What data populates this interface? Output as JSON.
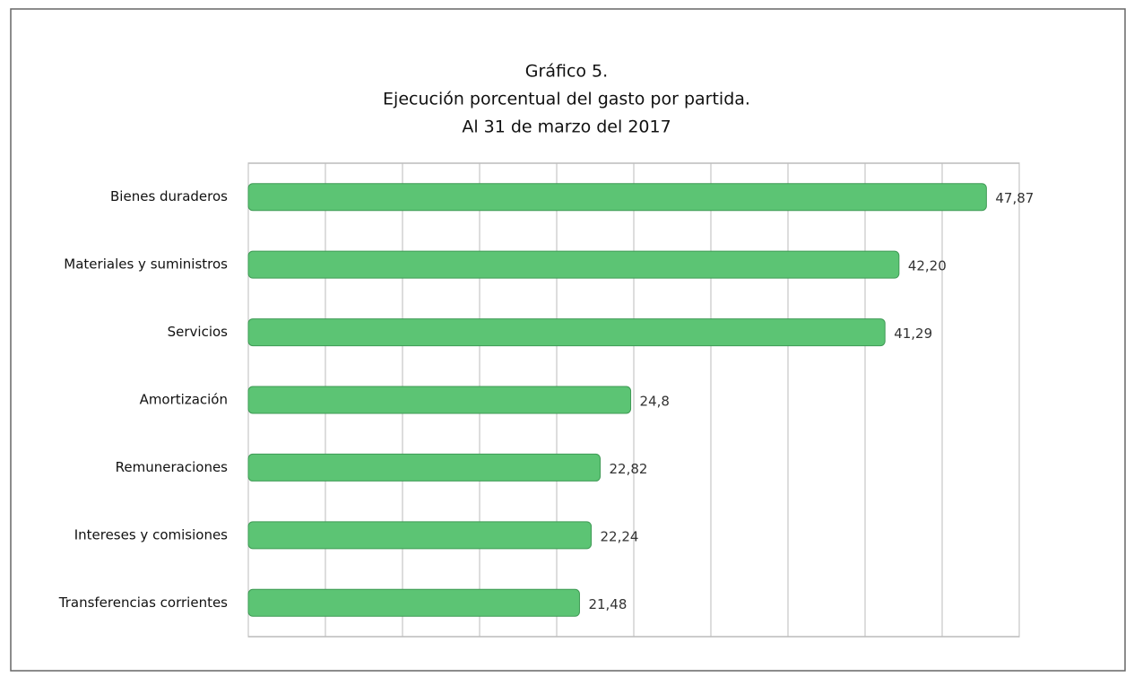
{
  "chart_data": {
    "type": "hbar",
    "title": [
      "Gráfico 5.",
      "Ejecución porcentual del gasto por partida.",
      "Al 31 de marzo del 2017"
    ],
    "categories": [
      "Bienes duraderos",
      "Materiales y suministros",
      "Servicios",
      "Amortización",
      "Remuneraciones",
      "Intereses y comisiones",
      "Transferencias corrientes"
    ],
    "values": [
      47.87,
      42.2,
      41.29,
      24.8,
      22.82,
      22.24,
      21.48
    ],
    "value_labels": [
      "47,87",
      "42,20",
      "41,29",
      "24,8",
      "22,82",
      "22,24",
      "21,48"
    ],
    "color": "#5cc474",
    "xlim": [
      0,
      50
    ],
    "xticks": [
      0,
      5,
      10,
      15,
      20,
      25,
      30,
      35,
      40,
      45,
      50
    ],
    "grid": true
  }
}
